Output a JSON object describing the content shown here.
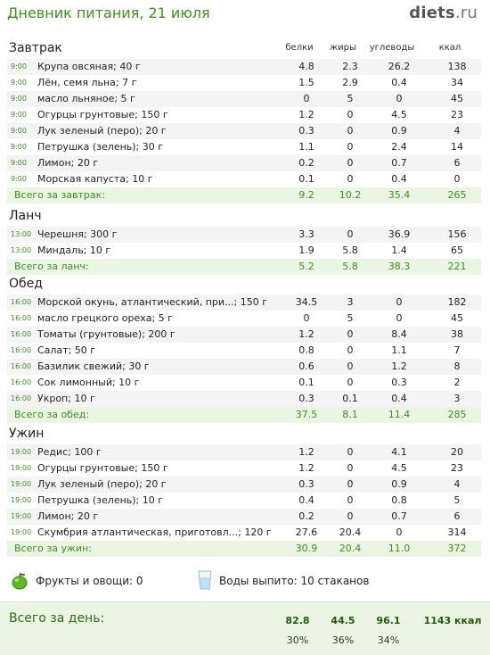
{
  "header": {
    "title": "Дневник питания, 21 июля",
    "logo_main": "diets",
    "logo_tld": ".ru"
  },
  "columns": [
    "белки",
    "жиры",
    "углеводы",
    "ккал"
  ],
  "meals": [
    {
      "title": "Завтрак",
      "items": [
        {
          "time": "9:00",
          "food": "Крупа овсяная; 40 г",
          "protein": "4.8",
          "fat": "2.3",
          "carbs": "26.2",
          "kcal": "138"
        },
        {
          "time": "9:00",
          "food": "Лён, семя льна; 7 г",
          "protein": "1.5",
          "fat": "2.9",
          "carbs": "0.4",
          "kcal": "34"
        },
        {
          "time": "9:00",
          "food": "масло льняное; 5 г",
          "protein": "0",
          "fat": "5",
          "carbs": "0",
          "kcal": "45"
        },
        {
          "time": "9:00",
          "food": "Огурцы грунтовые; 150 г",
          "protein": "1.2",
          "fat": "0",
          "carbs": "4.5",
          "kcal": "23"
        },
        {
          "time": "9:00",
          "food": "Лук зеленый (перо); 20 г",
          "protein": "0.3",
          "fat": "0",
          "carbs": "0.9",
          "kcal": "4"
        },
        {
          "time": "9:00",
          "food": "Петрушка (зелень); 30 г",
          "protein": "1.1",
          "fat": "0",
          "carbs": "2.4",
          "kcal": "14"
        },
        {
          "time": "9:00",
          "food": "Лимон; 20 г",
          "protein": "0.2",
          "fat": "0",
          "carbs": "0.7",
          "kcal": "6"
        },
        {
          "time": "9:00",
          "food": "Морская капуста; 10 г",
          "protein": "0.1",
          "fat": "0",
          "carbs": "0.4",
          "kcal": "0"
        }
      ],
      "total": {
        "label": "Всего за завтрак:",
        "protein": "9.2",
        "fat": "10.2",
        "carbs": "35.4",
        "kcal": "265"
      }
    },
    {
      "title": "Ланч",
      "items": [
        {
          "time": "13:00",
          "food": "Черешня; 300 г",
          "protein": "3.3",
          "fat": "0",
          "carbs": "36.9",
          "kcal": "156"
        },
        {
          "time": "13:00",
          "food": "Миндаль; 10 г",
          "protein": "1.9",
          "fat": "5.8",
          "carbs": "1.4",
          "kcal": "65"
        }
      ],
      "total": {
        "label": "Всего за ланч:",
        "protein": "5.2",
        "fat": "5.8",
        "carbs": "38.3",
        "kcal": "221"
      }
    },
    {
      "title": "Обед",
      "items": [
        {
          "time": "16:00",
          "food": "Морской окунь, атлантический, при...; 150 г",
          "protein": "34.5",
          "fat": "3",
          "carbs": "0",
          "kcal": "182"
        },
        {
          "time": "16:00",
          "food": "масло грецкого ореха; 5 г",
          "protein": "0",
          "fat": "5",
          "carbs": "0",
          "kcal": "45"
        },
        {
          "time": "16:00",
          "food": "Томаты (грунтовые); 200 г",
          "protein": "1.2",
          "fat": "0",
          "carbs": "8.4",
          "kcal": "38"
        },
        {
          "time": "16:00",
          "food": "Салат; 50 г",
          "protein": "0.8",
          "fat": "0",
          "carbs": "1.1",
          "kcal": "7"
        },
        {
          "time": "16:00",
          "food": "Базилик свежий; 30 г",
          "protein": "0.6",
          "fat": "0",
          "carbs": "1.2",
          "kcal": "8"
        },
        {
          "time": "16:00",
          "food": "Сок лимонный; 10 г",
          "protein": "0.1",
          "fat": "0",
          "carbs": "0.3",
          "kcal": "2"
        },
        {
          "time": "16:00",
          "food": "Укроп; 10 г",
          "protein": "0.3",
          "fat": "0.1",
          "carbs": "0.4",
          "kcal": "3"
        }
      ],
      "total": {
        "label": "Всего за обед:",
        "protein": "37.5",
        "fat": "8.1",
        "carbs": "11.4",
        "kcal": "285"
      }
    },
    {
      "title": "Ужин",
      "items": [
        {
          "time": "19:00",
          "food": "Редис; 100 г",
          "protein": "1.2",
          "fat": "0",
          "carbs": "4.1",
          "kcal": "20"
        },
        {
          "time": "19:00",
          "food": "Огурцы грунтовые; 150 г",
          "protein": "1.2",
          "fat": "0",
          "carbs": "4.5",
          "kcal": "23"
        },
        {
          "time": "19:00",
          "food": "Лук зеленый (перо); 20 г",
          "protein": "0.3",
          "fat": "0",
          "carbs": "0.9",
          "kcal": "4"
        },
        {
          "time": "19:00",
          "food": "Петрушка (зелень); 10 г",
          "protein": "0.4",
          "fat": "0",
          "carbs": "0.8",
          "kcal": "5"
        },
        {
          "time": "19:00",
          "food": "Лимон; 20 г",
          "protein": "0.2",
          "fat": "0",
          "carbs": "0.7",
          "kcal": "6"
        },
        {
          "time": "19:00",
          "food": "Скумбрия атлантическая, приготовл...; 120 г",
          "protein": "27.6",
          "fat": "20.4",
          "carbs": "0",
          "kcal": "314"
        }
      ],
      "total": {
        "label": "Всего за ужин:",
        "protein": "30.9",
        "fat": "20.4",
        "carbs": "11.0",
        "kcal": "372"
      }
    }
  ],
  "extras": {
    "fruits_label": "Фрукты и овощи: 0",
    "water_label": "Воды выпито: 10 стаканов",
    "fruits_icon": "apple-icon",
    "water_icon": "glass-icon"
  },
  "day_total": {
    "label": "Всего за день:",
    "protein": "82.8",
    "fat": "44.5",
    "carbs": "96.1",
    "kcal": "1143 ккал",
    "protein_pct": "30%",
    "fat_pct": "36%",
    "carbs_pct": "34%"
  },
  "colors": {
    "accent": "#3f8f1e",
    "total_bg": "#eaf5e4",
    "row_alt": "#f4f4f4"
  }
}
